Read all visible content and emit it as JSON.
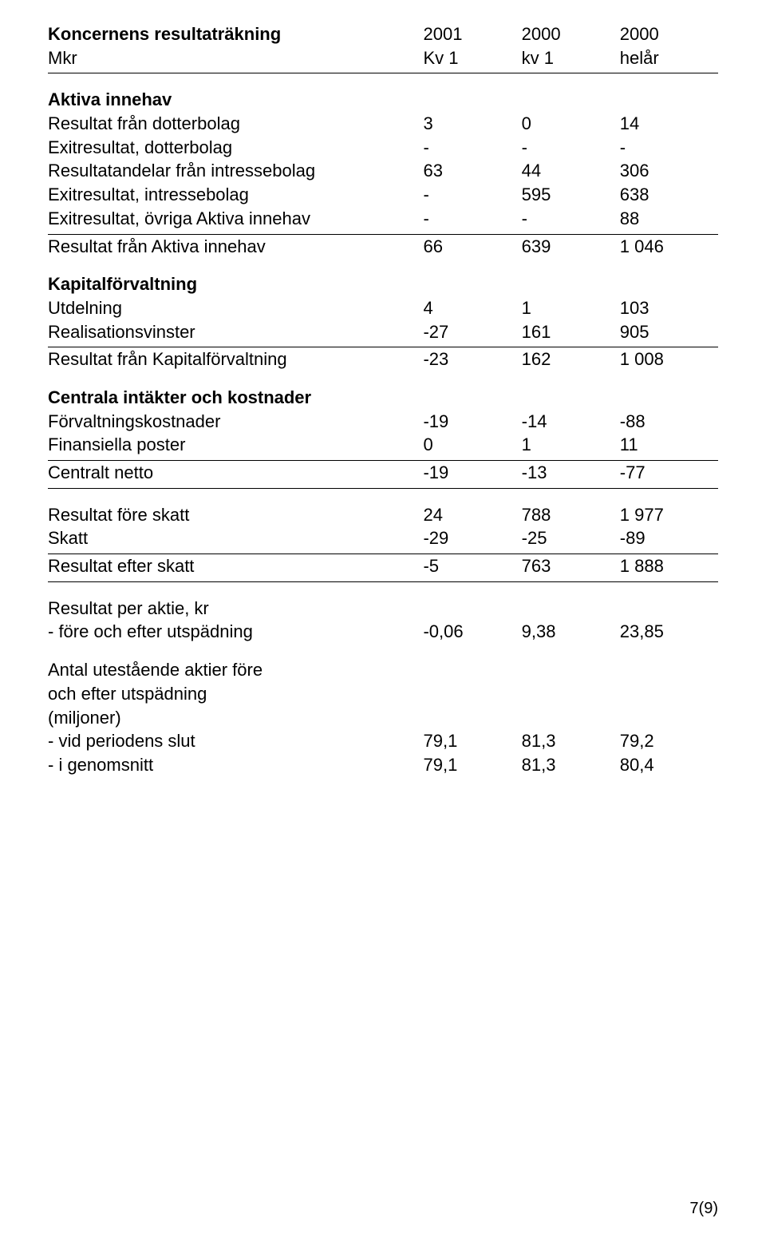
{
  "header": {
    "title": "Koncernens resultaträkning",
    "subtitle": "Mkr",
    "cols": [
      "2001",
      "2000",
      "2000"
    ],
    "subcols": [
      "Kv 1",
      "kv 1",
      "helår"
    ]
  },
  "s_aktiva": {
    "heading": "Aktiva innehav",
    "rows": [
      {
        "label": "Resultat från dotterbolag",
        "v": [
          "3",
          "0",
          "14"
        ]
      },
      {
        "label": "Exitresultat, dotterbolag",
        "v": [
          "-",
          "-",
          "-"
        ]
      },
      {
        "label": "Resultatandelar från intressebolag",
        "v": [
          "63",
          "44",
          "306"
        ]
      },
      {
        "label": "Exitresultat, intressebolag",
        "v": [
          "-",
          "595",
          "638"
        ]
      },
      {
        "label": "Exitresultat, övriga Aktiva innehav",
        "v": [
          "-",
          "-",
          "88"
        ]
      }
    ],
    "total": {
      "label": "Resultat från Aktiva innehav",
      "v": [
        "66",
        "639",
        "1 046"
      ]
    }
  },
  "s_kapital": {
    "heading": "Kapitalförvaltning",
    "rows": [
      {
        "label": "Utdelning",
        "v": [
          "4",
          "1",
          "103"
        ]
      },
      {
        "label": "Realisationsvinster",
        "v": [
          "-27",
          "161",
          "905"
        ]
      }
    ],
    "total": {
      "label": "Resultat från Kapitalförvaltning",
      "v": [
        "-23",
        "162",
        "1 008"
      ]
    }
  },
  "s_centrala": {
    "heading": "Centrala intäkter och kostnader",
    "rows": [
      {
        "label": "Förvaltningskostnader",
        "v": [
          "-19",
          "-14",
          "-88"
        ]
      },
      {
        "label": "Finansiella poster",
        "v": [
          "0",
          "1",
          "11"
        ]
      }
    ],
    "total": {
      "label": "Centralt netto",
      "v": [
        "-19",
        "-13",
        "-77"
      ]
    }
  },
  "s_result": {
    "rows": [
      {
        "label": "Resultat före skatt",
        "v": [
          "24",
          "788",
          "1 977"
        ]
      },
      {
        "label": "Skatt",
        "v": [
          "-29",
          "-25",
          "-89"
        ]
      }
    ],
    "total": {
      "label": "Resultat efter skatt",
      "v": [
        "-5",
        "763",
        "1 888"
      ]
    }
  },
  "s_peraktie": {
    "heading": "Resultat per aktie, kr",
    "rows": [
      {
        "label": "- före och efter utspädning",
        "v": [
          "-0,06",
          "9,38",
          "23,85"
        ]
      }
    ]
  },
  "s_antal": {
    "heading1": "Antal utestående aktier före",
    "heading2": "och efter utspädning",
    "heading3": "(miljoner)",
    "rows": [
      {
        "label": "- vid periodens slut",
        "v": [
          "79,1",
          "81,3",
          "79,2"
        ]
      },
      {
        "label": "- i genomsnitt",
        "v": [
          "79,1",
          "81,3",
          "80,4"
        ]
      }
    ]
  },
  "pagenum": "7(9)"
}
